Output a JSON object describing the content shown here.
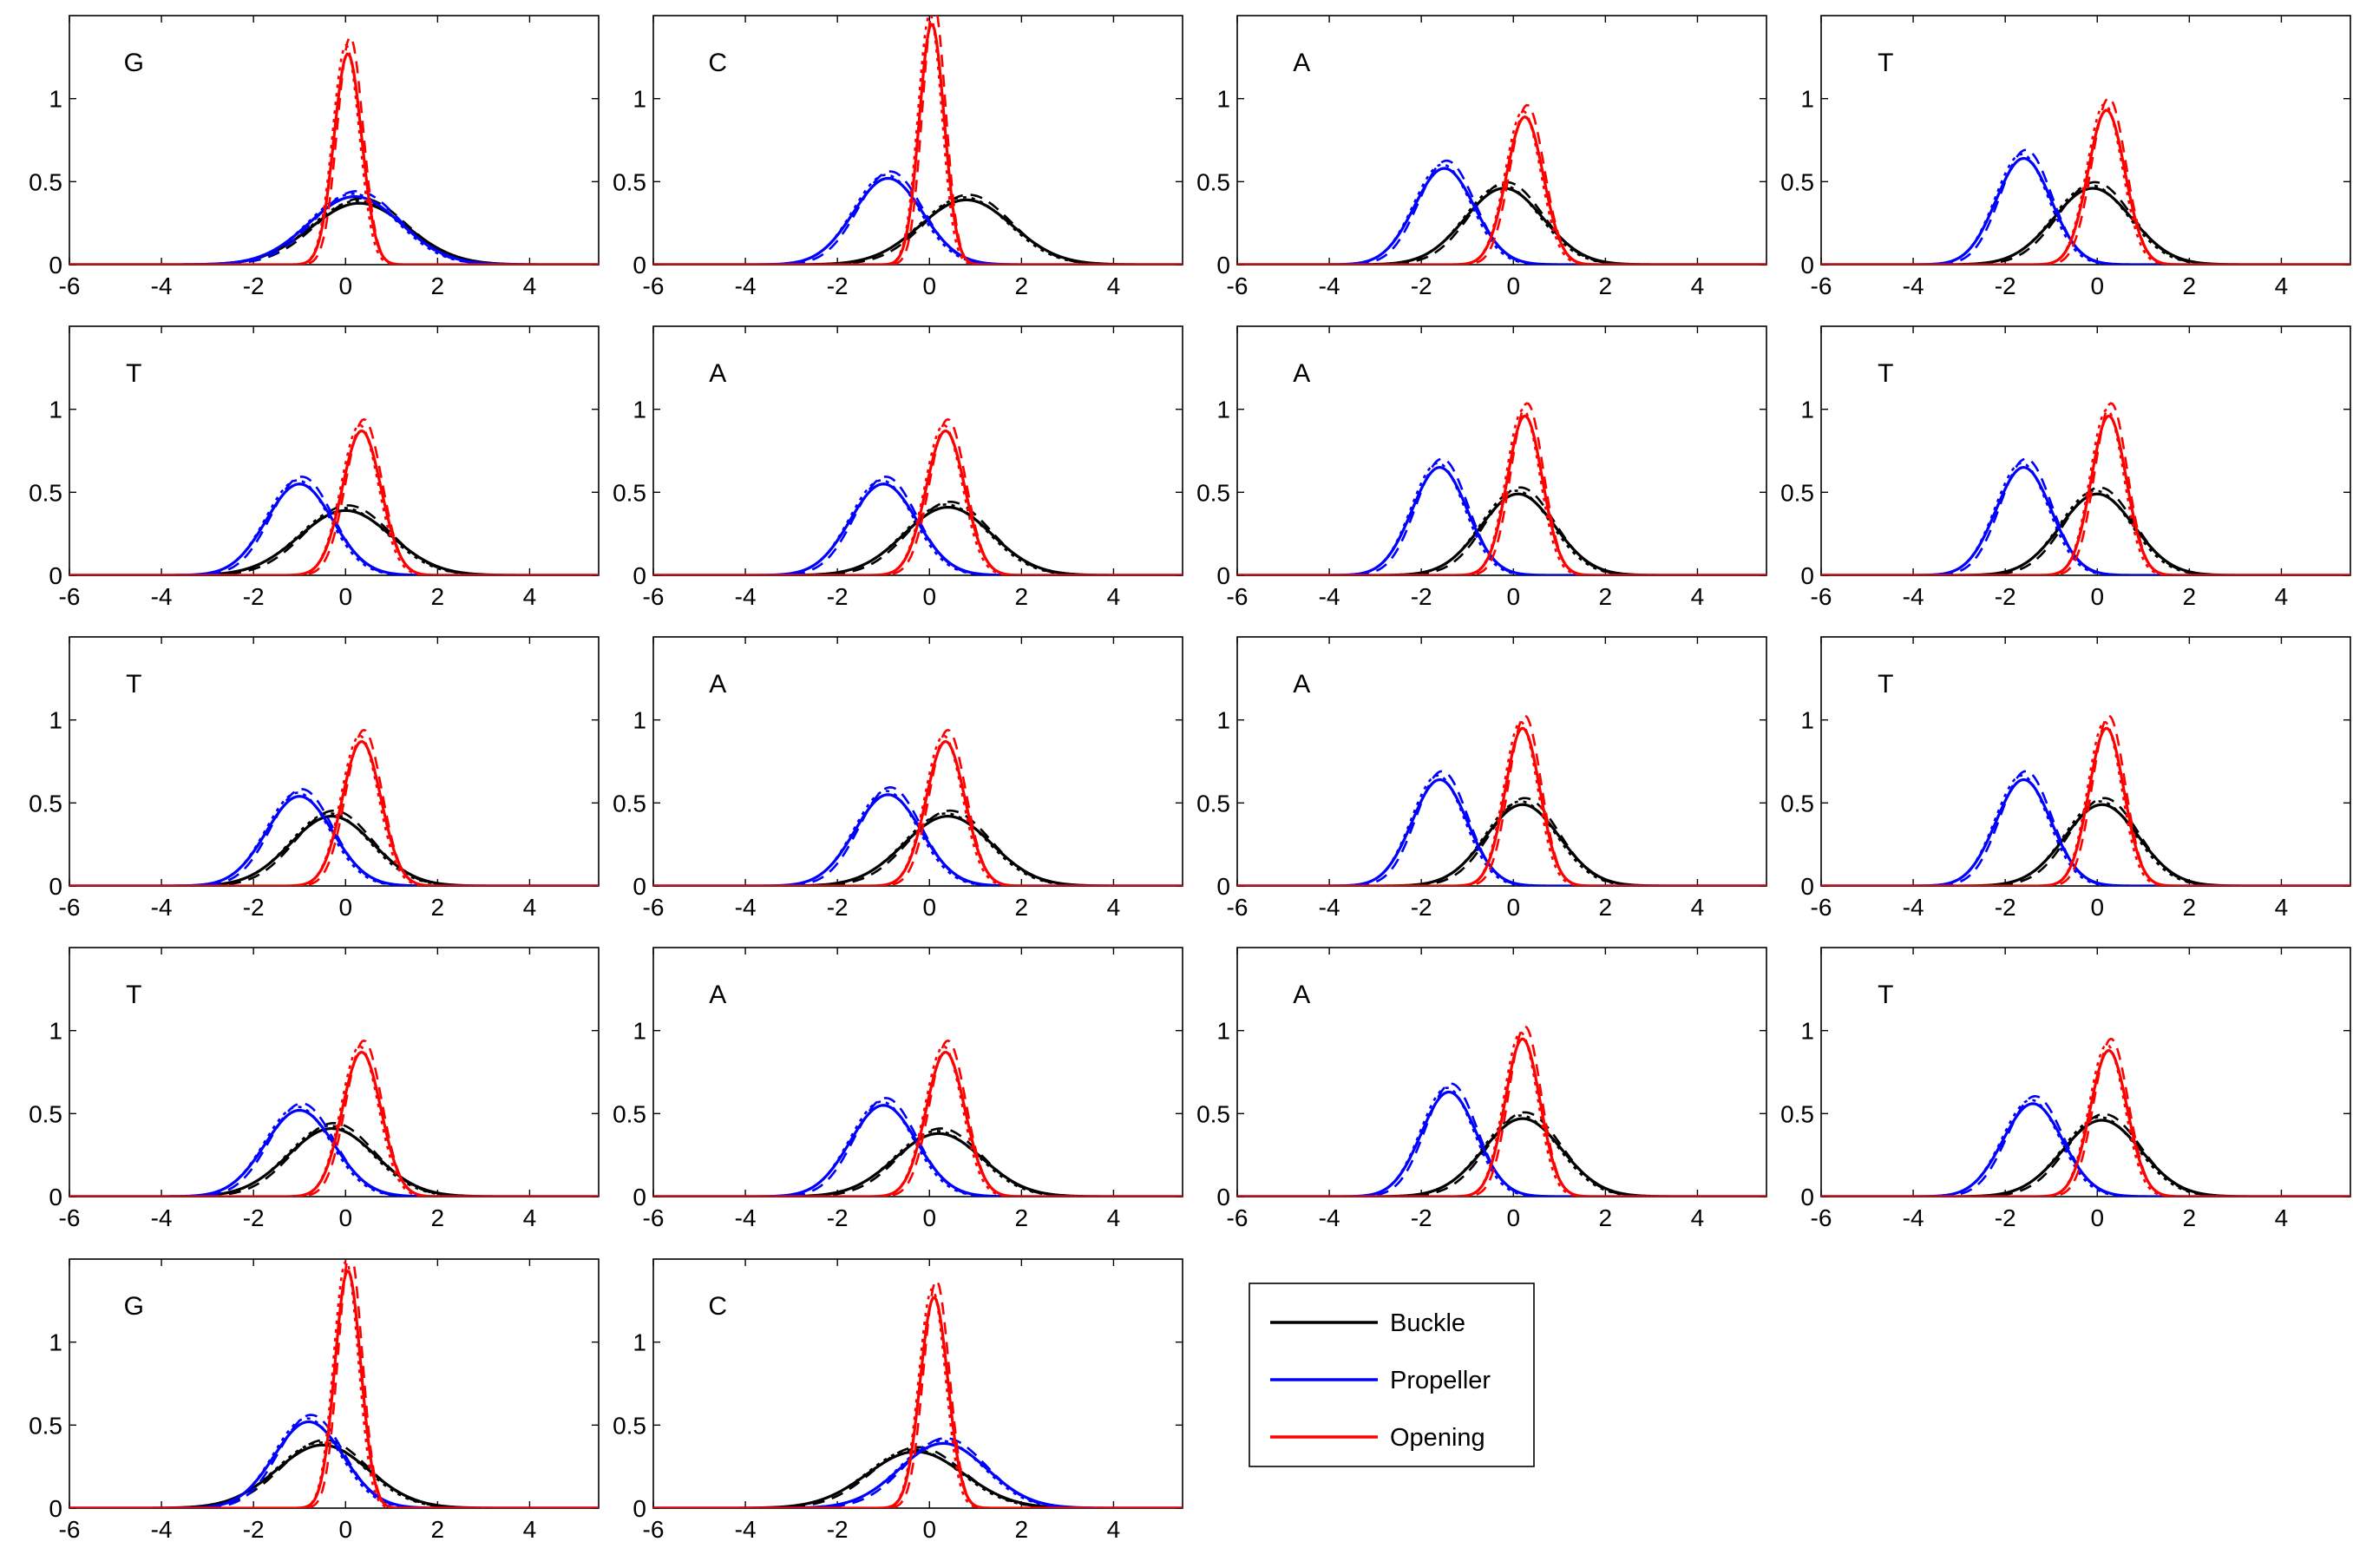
{
  "chart_data": {
    "type": "line",
    "xlim": [
      -6,
      5.5
    ],
    "ylim": [
      0,
      1.5
    ],
    "xticks": [
      "-6",
      "-4",
      "-2",
      "0",
      "2",
      "4"
    ],
    "yticks": [
      "0",
      "0.5",
      "1"
    ],
    "grid": false,
    "legend": {
      "placement": "row-5-col-3",
      "entries": [
        {
          "name": "Buckle",
          "color": "#000000"
        },
        {
          "name": "Propeller",
          "color": "#0000ff"
        },
        {
          "name": "Opening",
          "color": "#ff0000"
        }
      ]
    },
    "series_note": "each curve drawn as solid plus dashed variants",
    "panels": [
      {
        "label": "G",
        "buckle": {
          "mean": 0.3,
          "sd": 1.05,
          "peak": 0.37
        },
        "propeller": {
          "mean": 0.2,
          "sd": 1.0,
          "peak": 0.41
        },
        "opening": {
          "mean": 0.05,
          "sd": 0.3,
          "peak": 1.27
        }
      },
      {
        "label": "C",
        "buckle": {
          "mean": 0.8,
          "sd": 1.0,
          "peak": 0.39
        },
        "propeller": {
          "mean": -0.9,
          "sd": 0.75,
          "peak": 0.52
        },
        "opening": {
          "mean": 0.05,
          "sd": 0.27,
          "peak": 1.45
        }
      },
      {
        "label": "A",
        "buckle": {
          "mean": -0.2,
          "sd": 0.85,
          "peak": 0.46
        },
        "propeller": {
          "mean": -1.5,
          "sd": 0.65,
          "peak": 0.58
        },
        "opening": {
          "mean": 0.25,
          "sd": 0.4,
          "peak": 0.89
        }
      },
      {
        "label": "T",
        "buckle": {
          "mean": -0.1,
          "sd": 0.85,
          "peak": 0.46
        },
        "propeller": {
          "mean": -1.6,
          "sd": 0.6,
          "peak": 0.64
        },
        "opening": {
          "mean": 0.2,
          "sd": 0.4,
          "peak": 0.93
        }
      },
      {
        "label": "T",
        "buckle": {
          "mean": 0.0,
          "sd": 1.0,
          "peak": 0.39
        },
        "propeller": {
          "mean": -1.0,
          "sd": 0.72,
          "peak": 0.55
        },
        "opening": {
          "mean": 0.35,
          "sd": 0.42,
          "peak": 0.87
        }
      },
      {
        "label": "A",
        "buckle": {
          "mean": 0.4,
          "sd": 0.95,
          "peak": 0.41
        },
        "propeller": {
          "mean": -1.0,
          "sd": 0.72,
          "peak": 0.55
        },
        "opening": {
          "mean": 0.35,
          "sd": 0.42,
          "peak": 0.87
        }
      },
      {
        "label": "A",
        "buckle": {
          "mean": 0.1,
          "sd": 0.8,
          "peak": 0.49
        },
        "propeller": {
          "mean": -1.6,
          "sd": 0.6,
          "peak": 0.65
        },
        "opening": {
          "mean": 0.25,
          "sd": 0.38,
          "peak": 0.96
        }
      },
      {
        "label": "T",
        "buckle": {
          "mean": 0.0,
          "sd": 0.8,
          "peak": 0.49
        },
        "propeller": {
          "mean": -1.6,
          "sd": 0.6,
          "peak": 0.65
        },
        "opening": {
          "mean": 0.25,
          "sd": 0.38,
          "peak": 0.96
        }
      },
      {
        "label": "T",
        "buckle": {
          "mean": -0.3,
          "sd": 0.9,
          "peak": 0.42
        },
        "propeller": {
          "mean": -1.0,
          "sd": 0.72,
          "peak": 0.54
        },
        "opening": {
          "mean": 0.35,
          "sd": 0.42,
          "peak": 0.87
        }
      },
      {
        "label": "A",
        "buckle": {
          "mean": 0.4,
          "sd": 0.95,
          "peak": 0.42
        },
        "propeller": {
          "mean": -0.9,
          "sd": 0.72,
          "peak": 0.55
        },
        "opening": {
          "mean": 0.35,
          "sd": 0.42,
          "peak": 0.87
        }
      },
      {
        "label": "A",
        "buckle": {
          "mean": 0.2,
          "sd": 0.8,
          "peak": 0.49
        },
        "propeller": {
          "mean": -1.6,
          "sd": 0.6,
          "peak": 0.64
        },
        "opening": {
          "mean": 0.2,
          "sd": 0.38,
          "peak": 0.95
        }
      },
      {
        "label": "T",
        "buckle": {
          "mean": 0.1,
          "sd": 0.8,
          "peak": 0.49
        },
        "propeller": {
          "mean": -1.6,
          "sd": 0.6,
          "peak": 0.64
        },
        "opening": {
          "mean": 0.2,
          "sd": 0.38,
          "peak": 0.95
        }
      },
      {
        "label": "T",
        "buckle": {
          "mean": -0.3,
          "sd": 0.95,
          "peak": 0.41
        },
        "propeller": {
          "mean": -1.0,
          "sd": 0.75,
          "peak": 0.52
        },
        "opening": {
          "mean": 0.35,
          "sd": 0.42,
          "peak": 0.87
        }
      },
      {
        "label": "A",
        "buckle": {
          "mean": 0.2,
          "sd": 0.95,
          "peak": 0.38
        },
        "propeller": {
          "mean": -1.0,
          "sd": 0.72,
          "peak": 0.55
        },
        "opening": {
          "mean": 0.35,
          "sd": 0.42,
          "peak": 0.87
        }
      },
      {
        "label": "A",
        "buckle": {
          "mean": 0.2,
          "sd": 0.85,
          "peak": 0.47
        },
        "propeller": {
          "mean": -1.4,
          "sd": 0.6,
          "peak": 0.63
        },
        "opening": {
          "mean": 0.2,
          "sd": 0.38,
          "peak": 0.95
        }
      },
      {
        "label": "T",
        "buckle": {
          "mean": 0.1,
          "sd": 0.85,
          "peak": 0.46
        },
        "propeller": {
          "mean": -1.4,
          "sd": 0.65,
          "peak": 0.56
        },
        "opening": {
          "mean": 0.25,
          "sd": 0.4,
          "peak": 0.88
        }
      },
      {
        "label": "G",
        "buckle": {
          "mean": -0.5,
          "sd": 1.0,
          "peak": 0.38
        },
        "propeller": {
          "mean": -0.8,
          "sd": 0.75,
          "peak": 0.52
        },
        "opening": {
          "mean": 0.05,
          "sd": 0.28,
          "peak": 1.43
        }
      },
      {
        "label": "C",
        "buckle": {
          "mean": -0.3,
          "sd": 1.05,
          "peak": 0.34
        },
        "propeller": {
          "mean": 0.3,
          "sd": 0.95,
          "peak": 0.39
        },
        "opening": {
          "mean": 0.1,
          "sd": 0.3,
          "peak": 1.27
        }
      }
    ]
  }
}
